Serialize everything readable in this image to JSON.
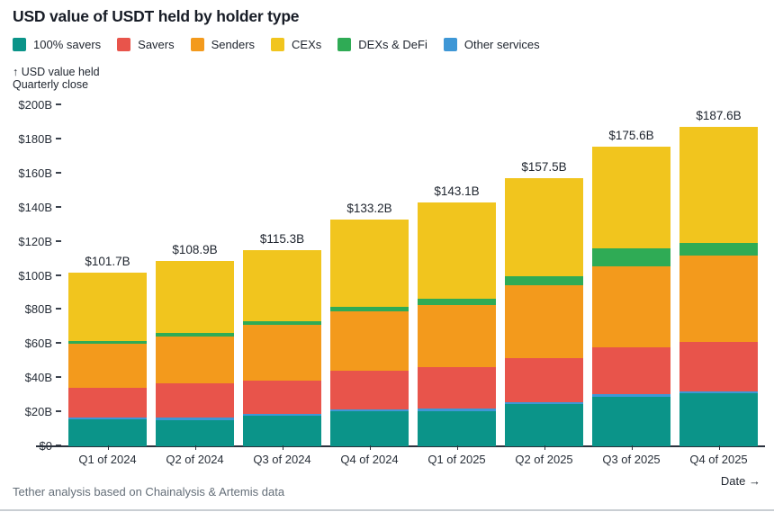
{
  "header": {
    "title": "USD value of USDT held by holder type"
  },
  "legend": {
    "items": [
      {
        "label": "100% savers",
        "color": "#0b9489"
      },
      {
        "label": "Savers",
        "color": "#e8544b"
      },
      {
        "label": "Senders",
        "color": "#f39a1c"
      },
      {
        "label": "CEXs",
        "color": "#f1c51e"
      },
      {
        "label": "DEXs & DeFi",
        "color": "#2fab55"
      },
      {
        "label": "Other services",
        "color": "#3e97d6"
      }
    ]
  },
  "axis_note": {
    "line1": "↑ USD value held",
    "line2": "Quarterly close"
  },
  "footer": {
    "source": "Tether analysis based on Chainalysis & Artemis data",
    "x_axis_label": "Date →"
  },
  "chart_data": {
    "type": "bar",
    "stacked": true,
    "title": "USD value of USDT held by holder type",
    "ylabel": "USD value held, quarterly close ($B)",
    "xlabel": "Date",
    "ylim": [
      0,
      200
    ],
    "grid": false,
    "legend_position": "top",
    "categories": [
      "Q1 of 2024",
      "Q2 of 2024",
      "Q3 of 2024",
      "Q4 of 2024",
      "Q1 of 2025",
      "Q2 of 2025",
      "Q3 of 2025",
      "Q4 of 2025"
    ],
    "total_labels": [
      "$101.7B",
      "$108.9B",
      "$115.3B",
      "$133.2B",
      "$143.1B",
      "$157.5B",
      "$175.6B",
      "$187.6B"
    ],
    "totals": [
      101.7,
      108.9,
      115.3,
      133.2,
      143.1,
      157.5,
      175.6,
      187.6
    ],
    "series_stack_order": "bottom_to_top",
    "series": [
      {
        "name": "100% savers",
        "color": "#0b9489",
        "values": [
          16.0,
          15.5,
          17.8,
          20.4,
          20.4,
          25.0,
          29.2,
          31.1
        ]
      },
      {
        "name": "Other services",
        "color": "#3e97d6",
        "values": [
          0.9,
          1.5,
          1.3,
          1.3,
          2.0,
          0.9,
          1.4,
          0.9
        ]
      },
      {
        "name": "Savers",
        "color": "#e8544b",
        "values": [
          17.5,
          19.7,
          19.4,
          22.4,
          23.8,
          25.9,
          27.3,
          29.3
        ]
      },
      {
        "name": "Senders",
        "color": "#f39a1c",
        "values": [
          25.7,
          27.5,
          32.7,
          34.9,
          36.6,
          42.9,
          47.6,
          50.7
        ]
      },
      {
        "name": "DEXs & DeFi",
        "color": "#2fab55",
        "values": [
          1.6,
          2.2,
          2.3,
          3.0,
          3.9,
          5.0,
          10.7,
          7.1
        ]
      },
      {
        "name": "CEXs",
        "color": "#f1c51e",
        "values": [
          40.0,
          42.5,
          41.8,
          51.2,
          56.4,
          57.8,
          59.4,
          68.5
        ]
      }
    ],
    "y_ticks": [
      {
        "value": 0,
        "label": "$0"
      },
      {
        "value": 20,
        "label": "$20B"
      },
      {
        "value": 40,
        "label": "$40B"
      },
      {
        "value": 60,
        "label": "$60B"
      },
      {
        "value": 80,
        "label": "$80B"
      },
      {
        "value": 100,
        "label": "$100B"
      },
      {
        "value": 120,
        "label": "$120B"
      },
      {
        "value": 140,
        "label": "$140B"
      },
      {
        "value": 160,
        "label": "$160B"
      },
      {
        "value": 180,
        "label": "$180B"
      },
      {
        "value": 200,
        "label": "$200B"
      }
    ]
  }
}
